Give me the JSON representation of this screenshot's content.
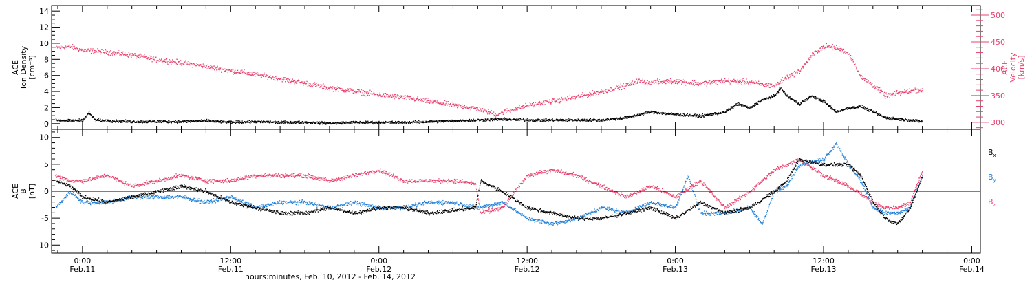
{
  "chart_data": [
    {
      "type": "scatter",
      "panel": "top",
      "xlabel": "hours:minutes, Feb. 10, 2012 - Feb. 14, 2012",
      "x_ticks": [
        {
          "label": "0:00",
          "sub": "Feb.11"
        },
        {
          "label": "12:00",
          "sub": "Feb.11"
        },
        {
          "label": "0:00",
          "sub": "Feb.12"
        },
        {
          "label": "12:00",
          "sub": "Feb.12"
        },
        {
          "label": "0:00",
          "sub": "Feb.13"
        },
        {
          "label": "12:00",
          "sub": "Feb.13"
        },
        {
          "label": "0:00",
          "sub": "Feb.14"
        }
      ],
      "x_unit": "hours since Feb.10 0:00",
      "xlim": [
        21.5,
        96.7
      ],
      "left_axis": {
        "label_lines": [
          "ACE",
          "Ion Density",
          "[cm⁻³]"
        ],
        "ylim": [
          -0.7,
          14.7
        ],
        "ticks": [
          0,
          2,
          4,
          6,
          8,
          10,
          12,
          14
        ]
      },
      "right_axis": {
        "label_lines": [
          "ACE",
          "Velocity",
          "[km/s]"
        ],
        "ylim": [
          287,
          518
        ],
        "ticks": [
          300,
          350,
          400,
          450,
          500
        ],
        "color": "#e8406c"
      },
      "series": [
        {
          "axis": "left",
          "color": "#000000",
          "x": [
            21.8,
            23,
            24,
            24.5,
            25,
            26,
            28,
            30,
            32,
            34,
            36,
            38,
            40,
            42,
            44,
            46,
            48,
            50,
            52,
            54,
            56,
            58,
            60,
            62,
            64,
            66,
            68,
            70,
            72,
            74,
            76,
            77,
            78,
            79,
            80,
            80.5,
            81,
            82,
            83,
            84,
            85,
            86,
            87,
            88,
            89,
            90,
            91,
            92
          ],
          "y": [
            0.5,
            0.4,
            0.5,
            1.4,
            0.5,
            0.4,
            0.3,
            0.3,
            0.3,
            0.4,
            0.2,
            0.3,
            0.2,
            0.2,
            0.1,
            0.2,
            0.2,
            0.2,
            0.3,
            0.4,
            0.5,
            0.6,
            0.5,
            0.5,
            0.5,
            0.5,
            0.8,
            1.5,
            1.2,
            1,
            1.5,
            2.5,
            2,
            3,
            3.5,
            4.5,
            3.5,
            2.5,
            3.5,
            2.8,
            1.5,
            2,
            2.2,
            1.5,
            0.8,
            0.6,
            0.5,
            0.3
          ]
        },
        {
          "axis": "right",
          "color": "#e8406c",
          "x": [
            21.8,
            23,
            24,
            26,
            28,
            30,
            32,
            34,
            36,
            38,
            40,
            42,
            44,
            46,
            48,
            50,
            52,
            54,
            56,
            57.5,
            58,
            60,
            62,
            64,
            66,
            68,
            69,
            70,
            72,
            74,
            76,
            78,
            79,
            80,
            81,
            82,
            83,
            84,
            85,
            86,
            86.5,
            87,
            88,
            89,
            90,
            91,
            92
          ],
          "y": [
            440,
            442,
            435,
            432,
            426,
            418,
            412,
            405,
            397,
            390,
            382,
            374,
            365,
            359,
            352,
            347,
            340,
            333,
            326,
            315,
            320,
            332,
            340,
            348,
            358,
            370,
            378,
            375,
            378,
            373,
            378,
            376,
            371,
            369,
            385,
            396,
            425,
            443,
            440,
            430,
            410,
            385,
            370,
            350,
            355,
            360,
            362
          ]
        }
      ]
    },
    {
      "type": "scatter",
      "panel": "bottom",
      "left_axis": {
        "label_lines": [
          "ACE",
          "B",
          "[nT]"
        ],
        "ylim": [
          -11.5,
          11.5
        ],
        "ticks": [
          -10,
          -5,
          0,
          5,
          10
        ]
      },
      "zero_line": true,
      "series": [
        {
          "name": "Bx",
          "color": "#000000",
          "x": [
            21.8,
            23,
            24,
            26,
            28,
            30,
            32,
            34,
            36,
            38,
            40,
            42,
            44,
            46,
            48,
            50,
            52,
            54,
            55.8,
            56.2,
            58,
            60,
            62,
            64,
            66,
            68,
            70,
            72,
            74,
            76,
            78,
            80,
            81,
            82,
            84,
            86,
            87,
            88,
            89,
            90,
            91,
            92
          ],
          "y": [
            2,
            1,
            -1,
            -2,
            -1,
            0,
            1,
            0,
            -2,
            -3,
            -4,
            -4,
            -3,
            -4,
            -3,
            -3,
            -4,
            -3.5,
            -3,
            2,
            0,
            -3,
            -4,
            -5,
            -5,
            -4,
            -3,
            -5,
            -2,
            -4,
            -3,
            0,
            2,
            6,
            5,
            5,
            3,
            -2,
            -5,
            -6,
            -3,
            3
          ]
        },
        {
          "name": "By",
          "color": "#1e7fd8",
          "x": [
            21.8,
            23,
            24,
            26,
            28,
            30,
            32,
            34,
            36,
            38,
            40,
            42,
            44,
            46,
            48,
            50,
            52,
            54,
            56,
            58,
            60,
            62,
            64,
            66,
            68,
            70,
            72,
            73,
            74,
            76,
            78,
            79,
            80,
            81,
            82,
            84,
            85,
            86,
            87,
            88,
            89,
            90,
            91,
            92
          ],
          "y": [
            -3,
            0,
            -2,
            -2,
            -1,
            -1,
            -1,
            -2,
            -1,
            -3,
            -2,
            -2,
            -3,
            -2,
            -3,
            -3,
            -2,
            -2,
            -3,
            -2,
            -5,
            -6,
            -5,
            -3,
            -4,
            -2,
            -3,
            3,
            -4,
            -4,
            -3,
            -6,
            0,
            1,
            5,
            6,
            9,
            5,
            2,
            -3,
            -4,
            -4,
            -3,
            3
          ]
        },
        {
          "name": "Bz",
          "color": "#e8406c",
          "x": [
            21.8,
            23,
            24,
            26,
            28,
            30,
            32,
            34,
            36,
            38,
            40,
            42,
            44,
            46,
            48,
            50,
            52,
            54,
            55.8,
            56.2,
            58,
            60,
            62,
            64,
            66,
            68,
            70,
            72,
            74,
            76,
            78,
            80,
            82,
            84,
            86,
            88,
            89,
            90,
            91,
            92
          ],
          "y": [
            3,
            2,
            2,
            3,
            1,
            2,
            3,
            2,
            2,
            3,
            3,
            3,
            2,
            3,
            4,
            2,
            2,
            2,
            1.5,
            -4,
            -3,
            3,
            4,
            3,
            1,
            -1,
            1,
            -1,
            2,
            -3,
            0,
            4,
            6,
            3,
            1,
            -2,
            -3,
            -3,
            -2,
            4
          ]
        }
      ],
      "legend": {
        "placement": "right",
        "entries": [
          {
            "base": "B",
            "sub": "x",
            "color": "#000000"
          },
          {
            "base": "B",
            "sub": "y",
            "color": "#1e7fd8"
          },
          {
            "base": "B",
            "sub": "z",
            "color": "#e8406c"
          }
        ]
      }
    }
  ]
}
